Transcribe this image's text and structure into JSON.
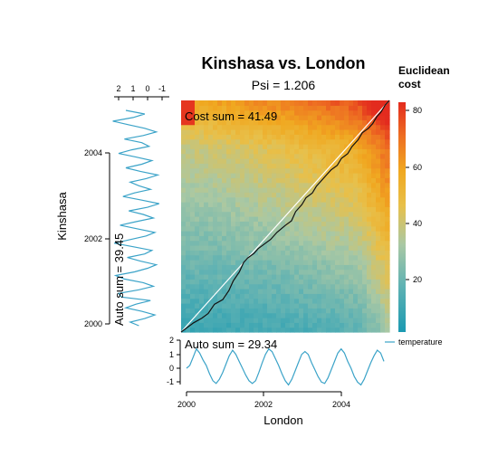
{
  "chart_data": {
    "type": "heatmap",
    "title": "Kinshasa vs. London",
    "subtitle": "Psi = 1.206",
    "xlabel": "London",
    "ylabel": "Kinshasa",
    "x_range": [
      2000,
      2005
    ],
    "y_range": [
      2000,
      2005
    ],
    "x_ticks": [
      "2000",
      "2002",
      "2004"
    ],
    "y_ticks": [
      "2000",
      "2002",
      "2004"
    ],
    "cost_sum_label": "Cost sum =  41.49",
    "auto_sum_x_label": "Auto sum =  29.34",
    "auto_sum_y_label": "Auto sum =  39.45",
    "colorbar": {
      "title_line1": "Euclidean",
      "title_line2": "cost",
      "min": 0,
      "max": 82,
      "ticks": [
        "20",
        "40",
        "60",
        "80"
      ],
      "colors": [
        "#1b9ab2",
        "#5fb2b3",
        "#a9c8a4",
        "#e8c04a",
        "#f0a820",
        "#ee6f22",
        "#e32b1e"
      ]
    },
    "legend": {
      "series_name": "temperature",
      "position": "right"
    },
    "series_color": "#3ba3c8",
    "top_axis_ticks": [
      "2",
      "1",
      "0",
      "-1"
    ],
    "left_axis_ticks": [
      "2",
      "1",
      "0",
      "-1"
    ],
    "series_x_london": [
      0.0,
      0.2,
      0.8,
      1.4,
      1.1,
      0.6,
      0.2,
      -0.4,
      -0.9,
      -1.1,
      -0.8,
      -0.3,
      0.3,
      0.9,
      1.3,
      1.0,
      0.5,
      0.0,
      -0.5,
      -0.9,
      -1.1,
      -0.9,
      -0.3,
      0.4,
      1.0,
      1.4,
      1.2,
      0.7,
      0.2,
      -0.4,
      -0.9,
      -1.2,
      -0.8,
      -0.2,
      0.4,
      1.0,
      1.2,
      1.0,
      0.4,
      -0.1,
      -0.6,
      -1.0,
      -1.1,
      -0.7,
      -0.1,
      0.5,
      1.1,
      1.4,
      1.1,
      0.5,
      0.0,
      -0.6,
      -1.0,
      -1.2,
      -0.8,
      -0.2,
      0.4,
      0.9,
      1.3,
      1.1,
      0.5
    ],
    "series_y_kinshasa": [
      0.6,
      1.2,
      0.2,
      -0.5,
      0.4,
      1.5,
      0.8,
      -0.2,
      1.8,
      2.0,
      0.6,
      -0.4,
      0.3,
      1.6,
      2.2,
      0.9,
      0.0,
      -0.6,
      0.5,
      1.4,
      0.2,
      -0.3,
      1.0,
      2.3,
      1.2,
      0.1,
      -0.5,
      0.7,
      1.9,
      0.8,
      -0.4,
      0.3,
      1.3,
      0.0,
      -0.8,
      0.4,
      1.7,
      0.9,
      -0.2,
      0.6,
      1.2,
      0.1,
      -0.7,
      0.5,
      1.5,
      0.4,
      -0.3,
      0.8,
      2.0,
      1.1,
      -0.1,
      0.4,
      1.6,
      0.3,
      -0.6,
      0.2,
      1.3,
      2.4,
      1.0,
      0.2,
      1.5
    ],
    "warping_path": [
      [
        0.0,
        0.0
      ],
      [
        0.03,
        0.02
      ],
      [
        0.06,
        0.04
      ],
      [
        0.1,
        0.06
      ],
      [
        0.13,
        0.08
      ],
      [
        0.16,
        0.12
      ],
      [
        0.2,
        0.14
      ],
      [
        0.23,
        0.18
      ],
      [
        0.25,
        0.22
      ],
      [
        0.28,
        0.26
      ],
      [
        0.3,
        0.3
      ],
      [
        0.32,
        0.32
      ],
      [
        0.35,
        0.34
      ],
      [
        0.37,
        0.36
      ],
      [
        0.4,
        0.38
      ],
      [
        0.43,
        0.4
      ],
      [
        0.46,
        0.43
      ],
      [
        0.5,
        0.46
      ],
      [
        0.53,
        0.48
      ],
      [
        0.55,
        0.52
      ],
      [
        0.58,
        0.55
      ],
      [
        0.6,
        0.58
      ],
      [
        0.63,
        0.6
      ],
      [
        0.65,
        0.63
      ],
      [
        0.67,
        0.65
      ],
      [
        0.7,
        0.68
      ],
      [
        0.72,
        0.7
      ],
      [
        0.75,
        0.72
      ],
      [
        0.77,
        0.75
      ],
      [
        0.8,
        0.77
      ],
      [
        0.82,
        0.8
      ],
      [
        0.85,
        0.83
      ],
      [
        0.87,
        0.86
      ],
      [
        0.9,
        0.88
      ],
      [
        0.92,
        0.9
      ],
      [
        0.94,
        0.93
      ],
      [
        0.96,
        0.95
      ],
      [
        0.98,
        0.98
      ],
      [
        1.0,
        1.0
      ]
    ]
  }
}
